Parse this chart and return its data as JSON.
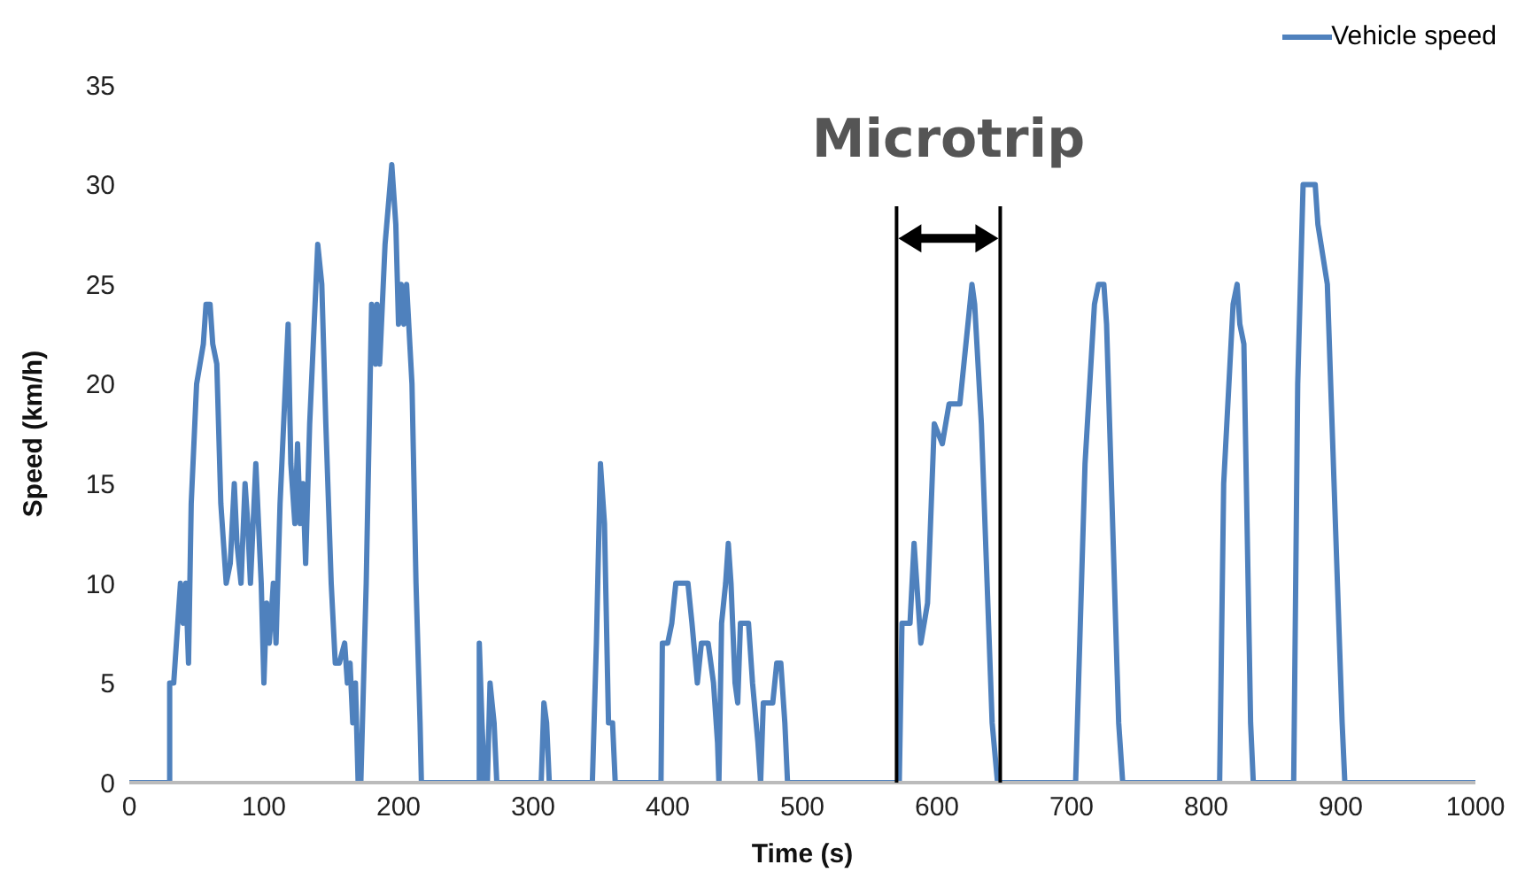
{
  "chart_data": {
    "type": "line",
    "xlabel": "Time (s)",
    "ylabel": "Speed (km/h)",
    "xlim": [
      0,
      1000
    ],
    "ylim": [
      0,
      35
    ],
    "xticks": [
      0,
      100,
      200,
      300,
      400,
      500,
      600,
      700,
      800,
      900,
      1000
    ],
    "yticks": [
      0,
      5,
      10,
      15,
      20,
      25,
      30,
      35
    ],
    "grid": false,
    "legend": "top right",
    "marker": "none",
    "line_style": "solid",
    "annotations": [
      "Microtrip"
    ],
    "ref_lines": [
      {
        "axis": "x",
        "value": 570,
        "label": null,
        "color": "#000000"
      },
      {
        "axis": "x",
        "value": 647,
        "label": null,
        "color": "#000000"
      }
    ],
    "series": [
      {
        "name": "Vehicle speed",
        "color": "#4f81bd",
        "x": [
          0,
          30,
          30,
          33,
          36,
          38,
          40,
          42,
          44,
          46,
          50,
          55,
          57,
          60,
          62,
          65,
          68,
          72,
          75,
          78,
          80,
          83,
          86,
          88,
          90,
          94,
          98,
          100,
          102,
          104,
          107,
          109,
          112,
          116,
          118,
          120,
          123,
          125,
          127,
          129,
          131,
          134,
          138,
          140,
          143,
          146,
          150,
          153,
          156,
          160,
          162,
          164,
          166,
          168,
          170,
          172,
          176,
          180,
          183,
          184,
          186,
          190,
          195,
          198,
          200,
          202,
          204,
          206,
          210,
          213,
          216,
          217,
          260,
          260,
          262,
          264,
          266,
          268,
          271,
          273,
          306,
          308,
          310,
          312,
          344,
          347,
          350,
          353,
          356,
          359,
          361,
          395,
          396,
          400,
          403,
          406,
          415,
          418,
          422,
          425,
          430,
          434,
          437,
          438,
          440,
          443,
          445,
          447,
          450,
          452,
          454,
          460,
          463,
          467,
          469,
          471,
          478,
          481,
          484,
          487,
          489,
          572,
          574,
          580,
          583,
          588,
          593,
          598,
          604,
          609,
          617,
          626,
          628,
          633,
          641,
          645,
          703,
          710,
          717,
          720,
          724,
          726,
          735,
          738,
          810,
          813,
          820,
          823,
          825,
          828,
          833,
          835,
          865,
          868,
          872,
          881,
          883,
          890,
          901,
          903,
          1000
        ],
        "values": [
          0,
          0,
          5,
          5,
          8,
          10,
          8,
          10,
          6,
          14,
          20,
          22,
          24,
          24,
          22,
          21,
          14,
          10,
          11,
          15,
          12,
          10,
          15,
          13,
          10,
          16,
          10,
          5,
          9,
          7,
          10,
          7,
          14,
          20,
          23,
          16,
          13,
          17,
          13,
          15,
          11,
          18,
          24,
          27,
          25,
          18,
          10,
          6,
          6,
          7,
          5,
          6,
          3,
          5,
          0,
          0,
          10,
          24,
          21,
          24,
          21,
          27,
          31,
          28,
          23,
          25,
          23,
          25,
          20,
          10,
          3,
          0,
          0,
          7,
          3,
          0,
          0,
          5,
          3,
          0,
          0,
          4,
          3,
          0,
          0,
          7,
          16,
          13,
          3,
          3,
          0,
          0,
          7,
          7,
          8,
          10,
          10,
          8,
          5,
          7,
          7,
          5,
          2,
          0,
          8,
          10,
          12,
          10,
          5,
          4,
          8,
          8,
          5,
          2,
          0,
          4,
          4,
          6,
          6,
          3,
          0,
          0,
          8,
          8,
          12,
          7,
          9,
          18,
          17,
          19,
          19,
          25,
          24,
          18,
          3,
          0,
          0,
          16,
          24,
          25,
          25,
          23,
          3,
          0,
          0,
          15,
          24,
          25,
          23,
          22,
          3,
          0,
          0,
          20,
          30,
          30,
          28,
          25,
          3,
          0,
          0
        ]
      }
    ]
  }
}
